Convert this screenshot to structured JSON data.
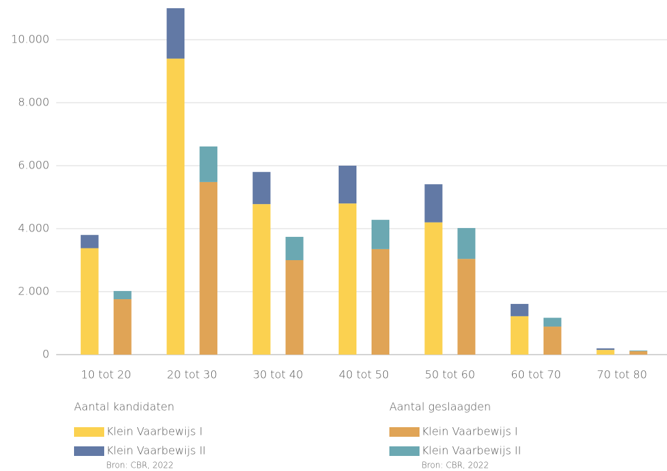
{
  "chart_data": {
    "type": "bar",
    "categories": [
      "10 tot 20",
      "20 tot 30",
      "30 tot 40",
      "40 tot 50",
      "50 tot 60",
      "60 tot 70",
      "70 tot 80"
    ],
    "groups": [
      {
        "title": "Aantal kandidaten",
        "series": [
          {
            "name": "Klein Vaarbewijs I",
            "color": "#fbd150",
            "values": [
              3380,
              9400,
              4780,
              4800,
              4200,
              1220,
              150
            ]
          },
          {
            "name": "Klein Vaarbewijs II",
            "color": "#6279a5",
            "values": [
              420,
              1600,
              1020,
              1200,
              1210,
              390,
              50
            ]
          }
        ]
      },
      {
        "title": "Aantal geslaagden",
        "series": [
          {
            "name": "Klein Vaarbewijs I",
            "color": "#e0a456",
            "values": [
              1760,
              5480,
              3000,
              3350,
              3040,
              890,
              110
            ]
          },
          {
            "name": "Klein Vaarbewijs II",
            "color": "#6ba8b2",
            "values": [
              260,
              1130,
              740,
              930,
              980,
              280,
              20
            ]
          }
        ]
      }
    ],
    "source": "Bron: CBR, 2022",
    "ylim": [
      0,
      11000
    ],
    "yticks": [
      0,
      {
        "value": 2000,
        "label": "2.000"
      },
      {
        "value": 4000,
        "label": "4.000"
      },
      {
        "value": 6000,
        "label": "6.000"
      },
      {
        "value": 8000,
        "label": "8.000"
      },
      {
        "value": 10000,
        "label": "10.000"
      }
    ],
    "grid": true
  }
}
